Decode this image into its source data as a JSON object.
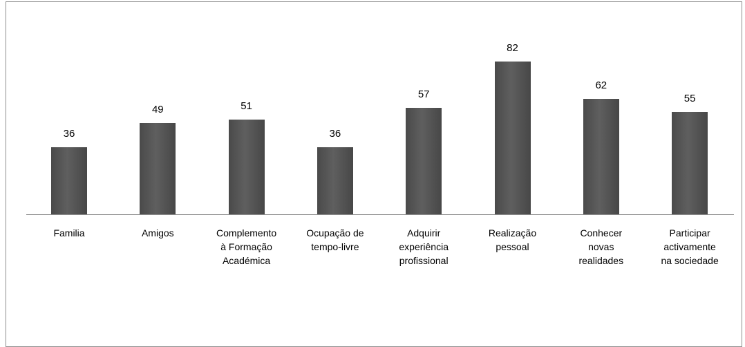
{
  "chart_data": {
    "type": "bar",
    "categories": [
      "Familia",
      "Amigos",
      "Complemento à Formação Académica",
      "Ocupação de tempo-livre",
      "Adquirir experiência profissional",
      "Realização pessoal",
      "Conhecer novas realidades",
      "Participar activamente na sociedade"
    ],
    "values": [
      36,
      49,
      51,
      36,
      57,
      82,
      62,
      55
    ],
    "color": "#555555"
  }
}
